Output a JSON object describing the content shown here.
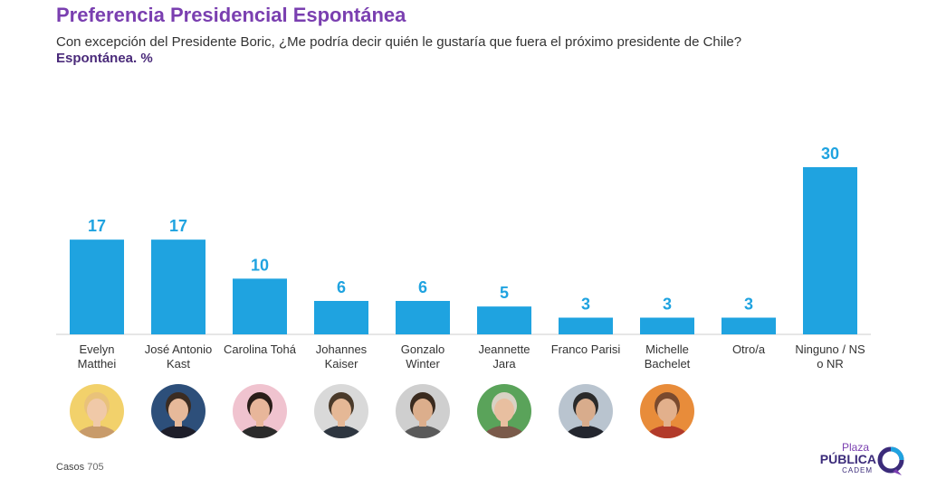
{
  "header": {
    "title": "Preferencia Presidencial Espontánea",
    "subtitle": "Con excepción del Presidente Boric, ¿Me podría decir quién le gustaría que fuera el próximo presidente de Chile?",
    "unit_label": "Espontánea. %"
  },
  "chart_data": {
    "type": "bar",
    "title": "Preferencia Presidencial Espontánea",
    "xlabel": "",
    "ylabel": "",
    "ylim": [
      0,
      30
    ],
    "grid": false,
    "categories": [
      [
        "Evelyn",
        "Matthei"
      ],
      [
        "José Antonio",
        "Kast"
      ],
      [
        "Carolina Tohá"
      ],
      [
        "Johannes",
        "Kaiser"
      ],
      [
        "Gonzalo",
        "Winter"
      ],
      [
        "Jeannette",
        "Jara"
      ],
      [
        "Franco Parisi"
      ],
      [
        "Michelle",
        "Bachelet"
      ],
      [
        "Otro/a"
      ],
      [
        "Ninguno / NS",
        "o NR"
      ]
    ],
    "values": [
      17,
      17,
      10,
      6,
      6,
      5,
      3,
      3,
      3,
      30
    ],
    "bar_color": "#1fa3e0"
  },
  "avatars": [
    {
      "name": "evelyn-matthei-photo",
      "bg": "#f2d16b",
      "hair": "#e9c27a",
      "skin": "#f0c9a8",
      "shirt": "#c89b6a"
    },
    {
      "name": "jose-antonio-kast-photo",
      "bg": "#2d4f7a",
      "hair": "#3b2c22",
      "skin": "#e6b99a",
      "shirt": "#1e1e2a"
    },
    {
      "name": "carolina-toha-photo",
      "bg": "#f0c3cf",
      "hair": "#2a1d18",
      "skin": "#e8b69a",
      "shirt": "#2b2b2b"
    },
    {
      "name": "johannes-kaiser-photo",
      "bg": "#d9d9d9",
      "hair": "#4a3a2a",
      "skin": "#e5b896",
      "shirt": "#2e3640"
    },
    {
      "name": "gonzalo-winter-photo",
      "bg": "#cfcfcf",
      "hair": "#3a2a1e",
      "skin": "#dcae8c",
      "shirt": "#5a5a5a"
    },
    {
      "name": "jeannette-jara-photo",
      "bg": "#5aa35a",
      "hair": "#d9d2c4",
      "skin": "#e8bfa0",
      "shirt": "#7a5a4a"
    },
    {
      "name": "franco-parisi-photo",
      "bg": "#b9c4cf",
      "hair": "#2a2a2a",
      "skin": "#d8ac8c",
      "shirt": "#23262e"
    },
    {
      "name": "michelle-bachelet-photo",
      "bg": "#e88c3a",
      "hair": "#7a4a2e",
      "skin": "#e2b08c",
      "shirt": "#b23a2a"
    }
  ],
  "footer": {
    "cases_label": "Casos",
    "cases_value": "705"
  },
  "logo": {
    "line1": "Plaza",
    "line2": "PÚBLICA",
    "line3": "CADEM",
    "colors": [
      "#3b2b7a",
      "#1fa3e0",
      "#7a3fb0"
    ]
  }
}
